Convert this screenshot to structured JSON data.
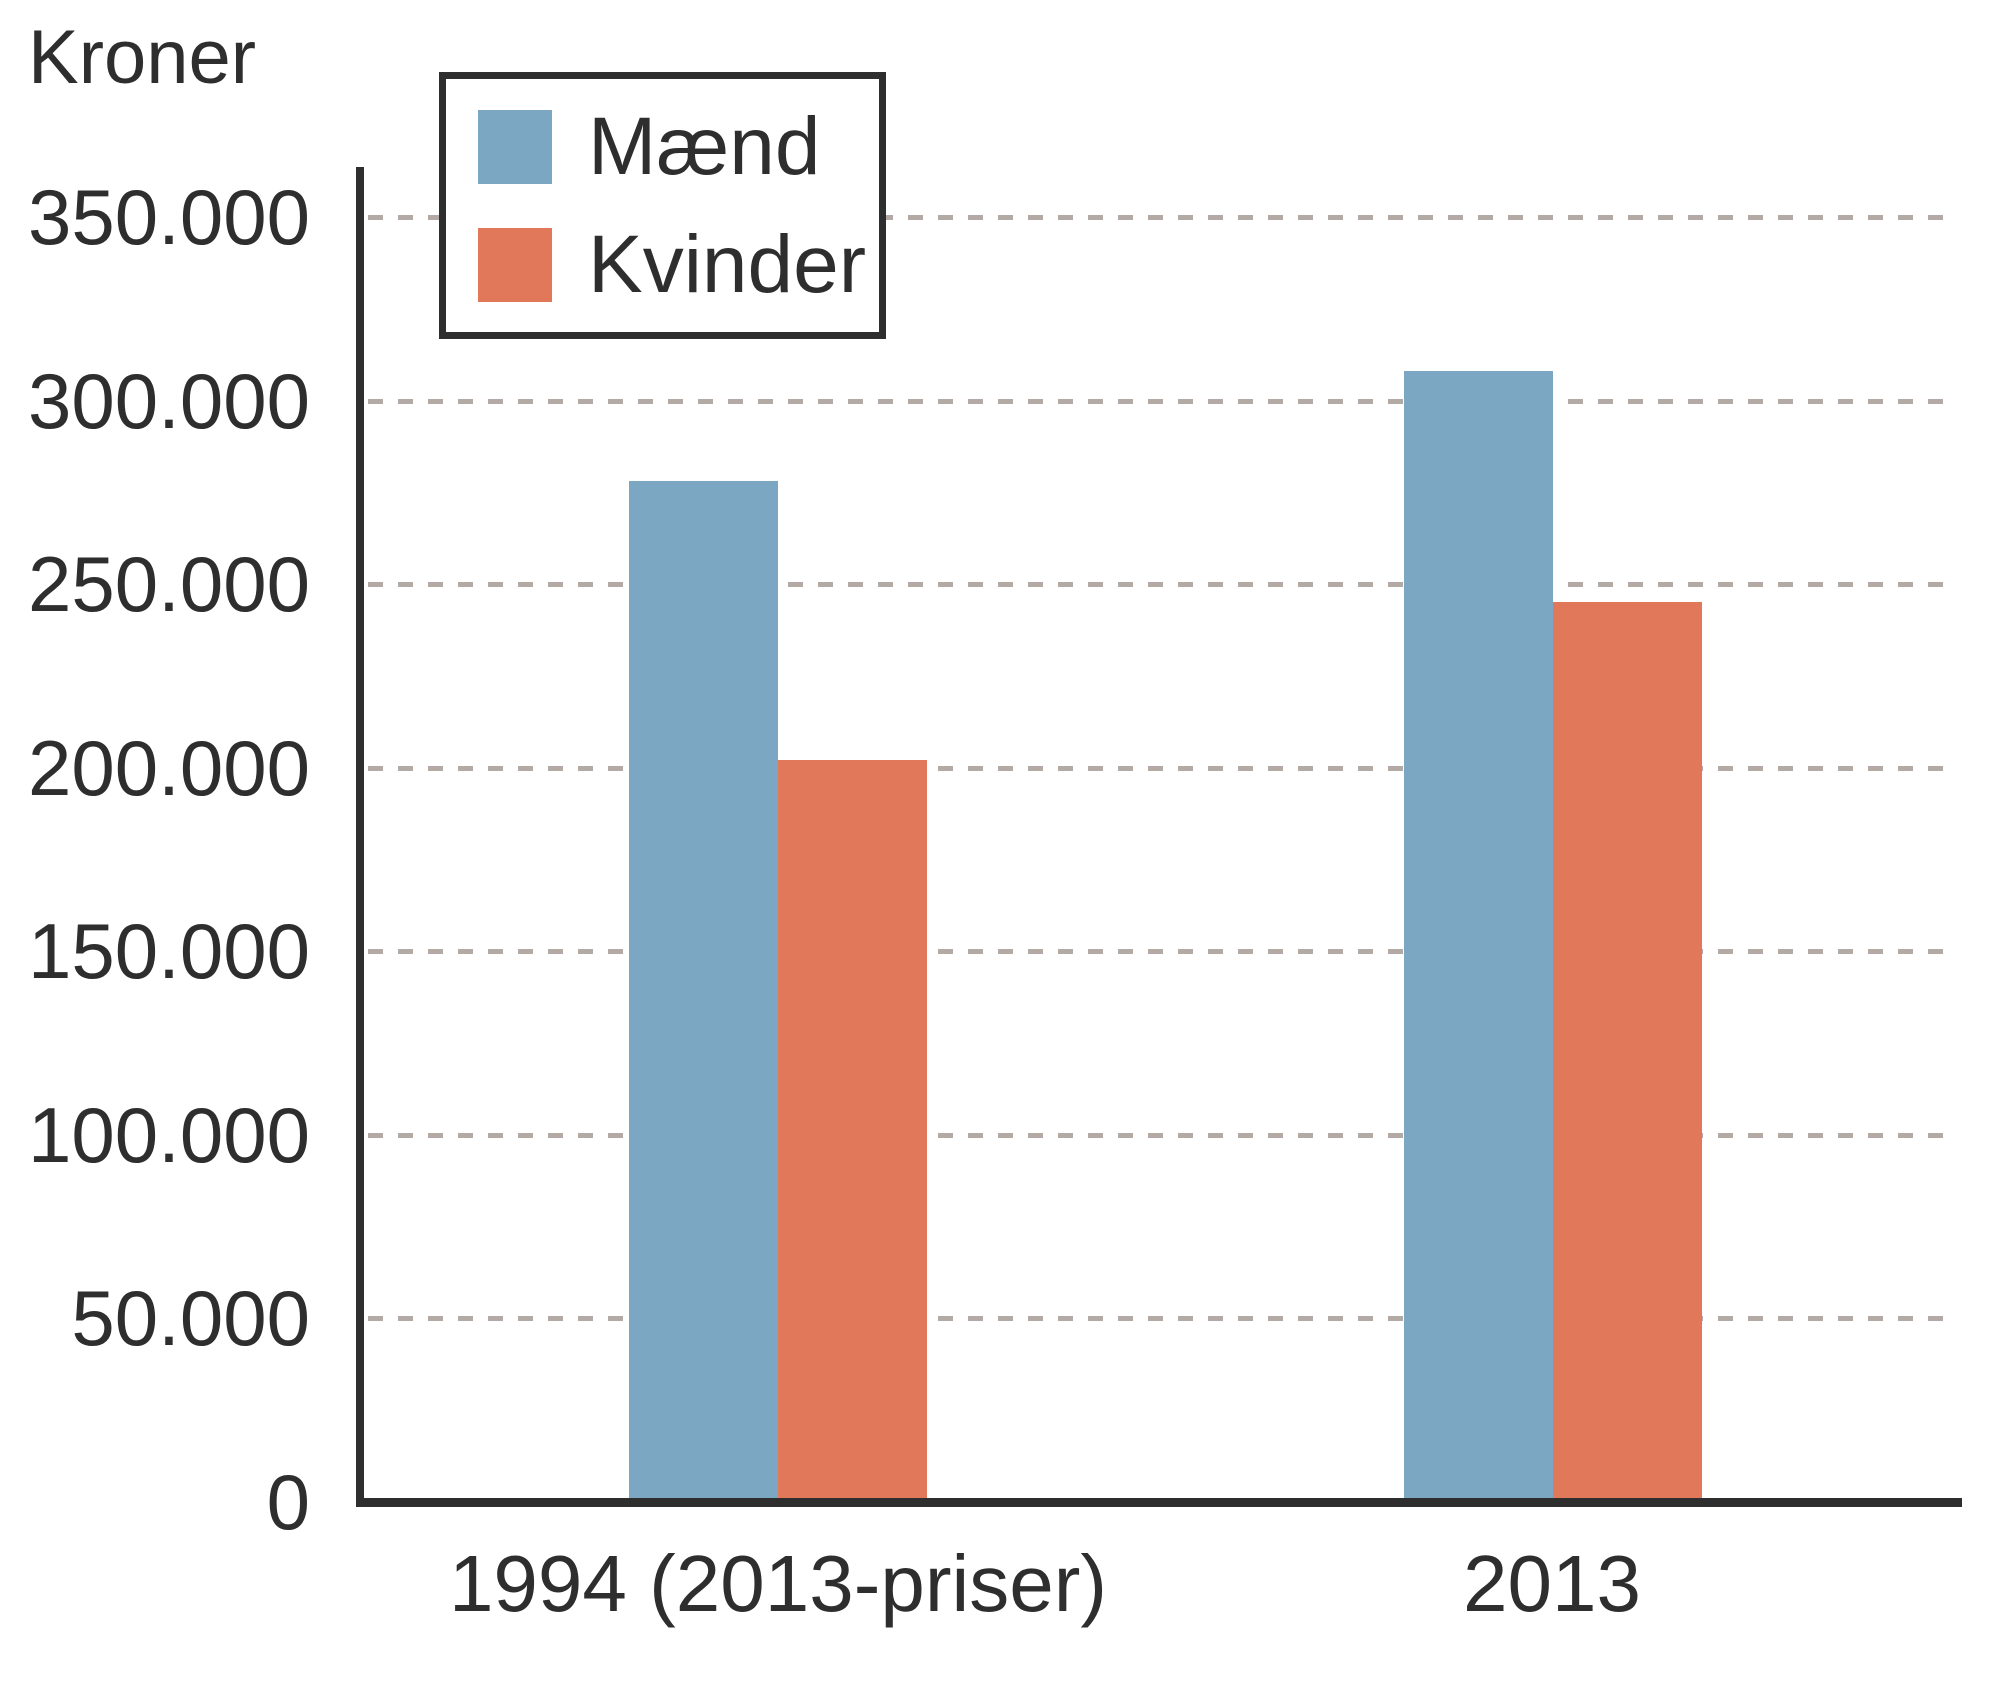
{
  "chart_data": {
    "type": "bar",
    "title": "",
    "ylabel": "Kroner",
    "xlabel": "",
    "categories": [
      "1994 (2013-priser)",
      "2013"
    ],
    "series": [
      {
        "name": "Mænd",
        "slug": "maend",
        "color": "#7CA7C3",
        "values": [
          277000,
          307000
        ]
      },
      {
        "name": "Kvinder",
        "slug": "kvinder",
        "color": "#E1785A",
        "values": [
          201000,
          244000
        ]
      }
    ],
    "ylim": [
      0,
      350000
    ],
    "ytick_step": 50000,
    "ytick_labels": [
      "350.000",
      "300.000",
      "250.000",
      "200.000",
      "150.000",
      "100.000",
      "50.000",
      "0"
    ],
    "grid": "horizontal-dashed",
    "gridline_color": "#b3aaa6",
    "axis_color": "#2e2e2e",
    "text_color": "#2e2e2e",
    "legend_position": "top-left-inside"
  }
}
